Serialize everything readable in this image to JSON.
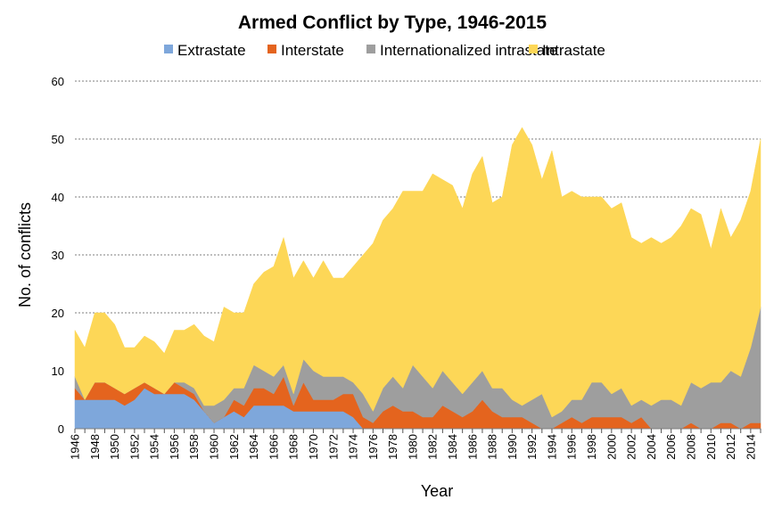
{
  "chart_data": {
    "type": "area",
    "stacked": true,
    "title": "Armed Conflict by Type, 1946-2015",
    "xlabel": "Year",
    "ylabel": "No. of conflicts",
    "ylim": [
      0,
      60
    ],
    "yticks": [
      0,
      10,
      20,
      30,
      40,
      50,
      60
    ],
    "grid": "horizontal dotted",
    "legend_position": "top",
    "x": [
      1946,
      1947,
      1948,
      1949,
      1950,
      1951,
      1952,
      1953,
      1954,
      1955,
      1956,
      1957,
      1958,
      1959,
      1960,
      1961,
      1962,
      1963,
      1964,
      1965,
      1966,
      1967,
      1968,
      1969,
      1970,
      1971,
      1972,
      1973,
      1974,
      1975,
      1976,
      1977,
      1978,
      1979,
      1980,
      1981,
      1982,
      1983,
      1984,
      1985,
      1986,
      1987,
      1988,
      1989,
      1990,
      1991,
      1992,
      1993,
      1994,
      1995,
      1996,
      1997,
      1998,
      1999,
      2000,
      2001,
      2002,
      2003,
      2004,
      2005,
      2006,
      2007,
      2008,
      2009,
      2010,
      2011,
      2012,
      2013,
      2014,
      2015
    ],
    "xtick_labels": [
      "1946",
      "1948",
      "1950",
      "1952",
      "1954",
      "1956",
      "1958",
      "1960",
      "1962",
      "1964",
      "1966",
      "1968",
      "1970",
      "1972",
      "1974",
      "1976",
      "1978",
      "1980",
      "1982",
      "1984",
      "1986",
      "1988",
      "1990",
      "1992",
      "1994",
      "1996",
      "1998",
      "2000",
      "2002",
      "2004",
      "2006",
      "2008",
      "2010",
      "2012",
      "2014"
    ],
    "series": [
      {
        "name": "Extrastate",
        "color": "#7ea7db",
        "values": [
          5,
          5,
          5,
          5,
          5,
          4,
          5,
          7,
          6,
          6,
          6,
          6,
          5,
          3,
          1,
          2,
          3,
          2,
          4,
          4,
          4,
          4,
          3,
          3,
          3,
          3,
          3,
          3,
          2,
          0,
          0,
          0,
          0,
          0,
          0,
          0,
          0,
          0,
          0,
          0,
          0,
          0,
          0,
          0,
          0,
          0,
          0,
          0,
          0,
          0,
          0,
          0,
          0,
          0,
          0,
          0,
          0,
          0,
          0,
          0,
          0,
          0,
          0,
          0,
          0,
          0,
          0,
          0,
          0,
          0
        ]
      },
      {
        "name": "Interstate",
        "color": "#e4641e",
        "values": [
          2,
          0,
          3,
          3,
          2,
          2,
          2,
          1,
          1,
          0,
          2,
          1,
          1,
          0,
          0,
          0,
          2,
          2,
          3,
          3,
          2,
          5,
          1,
          5,
          2,
          2,
          2,
          3,
          4,
          2,
          1,
          3,
          4,
          3,
          3,
          2,
          2,
          4,
          3,
          2,
          3,
          5,
          3,
          2,
          2,
          2,
          1,
          0,
          0,
          1,
          2,
          1,
          2,
          2,
          2,
          2,
          1,
          2,
          0,
          0,
          0,
          0,
          1,
          0,
          0,
          1,
          1,
          0,
          1,
          1
        ]
      },
      {
        "name": "Internationalized intrastate",
        "color": "#9e9e9e",
        "values": [
          2,
          0,
          0,
          0,
          0,
          0,
          0,
          0,
          0,
          0,
          0,
          1,
          1,
          1,
          3,
          3,
          2,
          3,
          4,
          3,
          3,
          2,
          2,
          4,
          5,
          4,
          4,
          3,
          2,
          4,
          2,
          4,
          5,
          4,
          8,
          7,
          5,
          6,
          5,
          4,
          5,
          5,
          4,
          5,
          3,
          2,
          4,
          6,
          2,
          2,
          3,
          4,
          6,
          6,
          4,
          5,
          3,
          3,
          4,
          5,
          5,
          4,
          7,
          7,
          8,
          7,
          9,
          9,
          13,
          20
        ]
      },
      {
        "name": "Intrastate",
        "color": "#fdd757",
        "values": [
          8,
          9,
          12,
          12,
          11,
          8,
          7,
          8,
          8,
          7,
          9,
          9,
          11,
          12,
          11,
          16,
          13,
          13,
          14,
          17,
          19,
          22,
          20,
          17,
          16,
          20,
          17,
          17,
          20,
          24,
          29,
          29,
          29,
          34,
          30,
          32,
          37,
          33,
          34,
          32,
          36,
          37,
          32,
          33,
          44,
          48,
          44,
          37,
          46,
          37,
          36,
          35,
          32,
          32,
          32,
          32,
          29,
          27,
          29,
          27,
          28,
          31,
          30,
          30,
          23,
          30,
          23,
          27,
          27,
          29
        ]
      }
    ]
  }
}
